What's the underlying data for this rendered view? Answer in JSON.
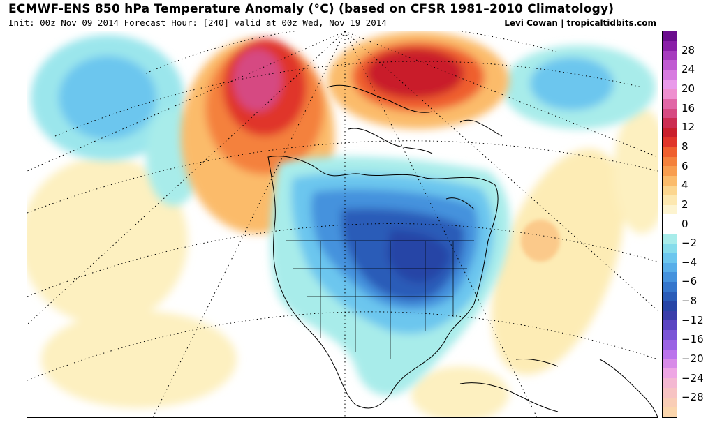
{
  "header": {
    "title": "ECMWF-ENS 850 hPa Temperature Anomaly (°C) (based on CFSR 1981–2010 Climatology)",
    "subtitle": "Init: 00z Nov 09 2014 Forecast Hour: [240] valid at 00z Wed, Nov 19 2014",
    "credit": "Levi Cowan | tropicaltidbits.com"
  },
  "colorbar": {
    "levels": [
      {
        "label": "",
        "color": "#6b0d8e"
      },
      {
        "label": "28",
        "color": "#8a1fa8"
      },
      {
        "label": "",
        "color": "#a63cbe"
      },
      {
        "label": "24",
        "color": "#c05bd2"
      },
      {
        "label": "",
        "color": "#d77be0"
      },
      {
        "label": "20",
        "color": "#e99aea"
      },
      {
        "label": "",
        "color": "#ee8fcf"
      },
      {
        "label": "16",
        "color": "#e166a6"
      },
      {
        "label": "",
        "color": "#d64a82"
      },
      {
        "label": "12",
        "color": "#cc2d52"
      },
      {
        "label": "",
        "color": "#c91f2c"
      },
      {
        "label": "8",
        "color": "#e0352a"
      },
      {
        "label": "",
        "color": "#ef5f2e"
      },
      {
        "label": "6",
        "color": "#f4813c"
      },
      {
        "label": "",
        "color": "#f89d4f"
      },
      {
        "label": "4",
        "color": "#fbbb6b"
      },
      {
        "label": "",
        "color": "#fcd68f"
      },
      {
        "label": "2",
        "color": "#fde8b0"
      },
      {
        "label": "",
        "color": "#fdf4d0"
      },
      {
        "label": "0",
        "color": "#ffffff"
      },
      {
        "label": "",
        "color": "#ffffff"
      },
      {
        "label": "−2",
        "color": "#a8ecea"
      },
      {
        "label": "",
        "color": "#86dceb"
      },
      {
        "label": "−4",
        "color": "#6cc6ee"
      },
      {
        "label": "",
        "color": "#58aee9"
      },
      {
        "label": "−6",
        "color": "#4592dd"
      },
      {
        "label": "",
        "color": "#3576cc"
      },
      {
        "label": "−8",
        "color": "#2a5cb8"
      },
      {
        "label": "",
        "color": "#2745a6"
      },
      {
        "label": "−12",
        "color": "#3a3eaa"
      },
      {
        "label": "",
        "color": "#5a45c2"
      },
      {
        "label": "−16",
        "color": "#7a55d6"
      },
      {
        "label": "",
        "color": "#9a63e4"
      },
      {
        "label": "−20",
        "color": "#bb73ec"
      },
      {
        "label": "",
        "color": "#d88be8"
      },
      {
        "label": "−24",
        "color": "#eea6e4"
      },
      {
        "label": "",
        "color": "#f4b8d2"
      },
      {
        "label": "−28",
        "color": "#f7c3c3"
      },
      {
        "label": "",
        "color": "#f9cdb6"
      },
      {
        "label": "",
        "color": "#fbd6ad"
      }
    ]
  },
  "map": {
    "region": "North America",
    "field": "850 hPa temperature anomaly",
    "features": {
      "cold_anomaly_center": "Great Lakes / eastern United States",
      "warm_anomaly_centers": [
        "Alaska",
        "Greenland"
      ]
    }
  }
}
